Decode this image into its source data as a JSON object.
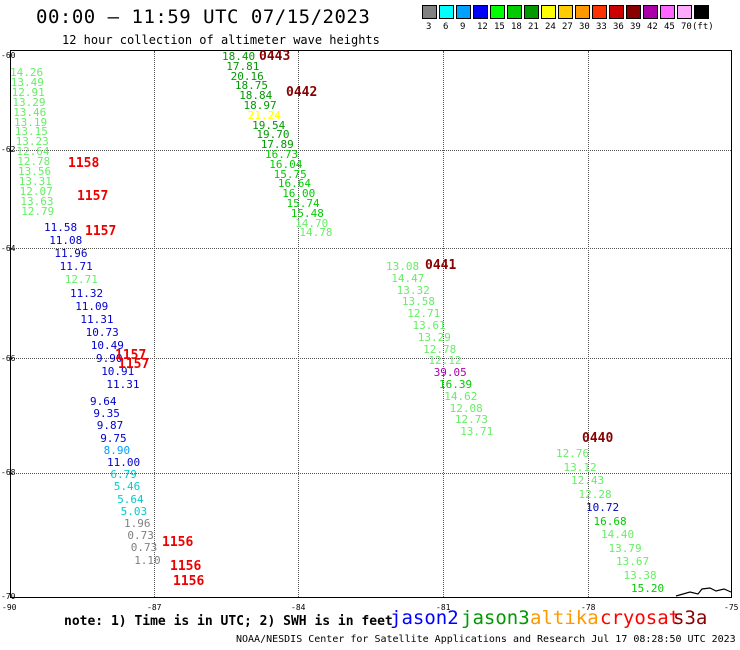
{
  "title": "00:00 – 11:59 UTC 07/15/2023",
  "subtitle": "12 hour collection of altimeter wave heights",
  "scale": {
    "colors": [
      "#808080",
      "#00ffff",
      "#00a0ff",
      "#0000ff",
      "#00ff00",
      "#00cc00",
      "#009900",
      "#ffff00",
      "#ffcc00",
      "#ff9900",
      "#ff3300",
      "#cc0000",
      "#880000",
      "#aa00aa",
      "#ff66ff",
      "#ffaaff",
      "#000000"
    ],
    "labels": [
      "3",
      "6",
      "9",
      "12",
      "15",
      "18",
      "21",
      "24",
      "27",
      "30",
      "33",
      "36",
      "39",
      "42",
      "45",
      "70",
      "(ft)"
    ]
  },
  "axes": {
    "y_labels": [
      "-60",
      "-62",
      "-64",
      "-66",
      "-68",
      "-70"
    ],
    "x_labels": [
      "-90",
      "-87",
      "-84",
      "-81",
      "-78",
      "-75"
    ]
  },
  "tracks": [
    {
      "id": "A",
      "points": [
        {
          "v": "18.40",
          "c": "#009900"
        },
        {
          "v": "17.81",
          "c": "#009900"
        },
        {
          "v": "20.16",
          "c": "#009900"
        },
        {
          "v": "18.75",
          "c": "#009900"
        },
        {
          "v": "18.84",
          "c": "#009900"
        },
        {
          "v": "18.97",
          "c": "#009900"
        },
        {
          "v": "21.24",
          "c": "#ffff00"
        },
        {
          "v": "19.54",
          "c": "#009900"
        },
        {
          "v": "19.70",
          "c": "#009900"
        },
        {
          "v": "17.89",
          "c": "#009900"
        },
        {
          "v": "16.73",
          "c": "#00cc00"
        },
        {
          "v": "16.04",
          "c": "#00cc00"
        },
        {
          "v": "15.75",
          "c": "#00cc00"
        },
        {
          "v": "16.64",
          "c": "#00cc00"
        },
        {
          "v": "16.00",
          "c": "#00cc00"
        },
        {
          "v": "15.74",
          "c": "#00cc00"
        },
        {
          "v": "15.48",
          "c": "#00cc00"
        },
        {
          "v": "14.70",
          "c": "#66ee66"
        },
        {
          "v": "14.78",
          "c": "#66ee66"
        }
      ]
    },
    {
      "id": "B",
      "points": [
        {
          "v": "13.08",
          "c": "#66ee66"
        },
        {
          "v": "14.47",
          "c": "#66ee66"
        },
        {
          "v": "13.32",
          "c": "#66ee66"
        },
        {
          "v": "13.58",
          "c": "#66ee66"
        },
        {
          "v": "12.71",
          "c": "#66ee66"
        },
        {
          "v": "13.61",
          "c": "#66ee66"
        },
        {
          "v": "13.29",
          "c": "#66ee66"
        },
        {
          "v": "12.78",
          "c": "#66ee66"
        },
        {
          "v": "12.12",
          "c": "#66ee66"
        },
        {
          "v": "39.05",
          "c": "#aa00aa"
        },
        {
          "v": "16.39",
          "c": "#00cc00"
        },
        {
          "v": "14.62",
          "c": "#66ee66"
        },
        {
          "v": "12.08",
          "c": "#66ee66"
        },
        {
          "v": "12.73",
          "c": "#66ee66"
        },
        {
          "v": "13.71",
          "c": "#66ee66"
        }
      ]
    },
    {
      "id": "C",
      "points": [
        {
          "v": "12.76",
          "c": "#66ee66"
        },
        {
          "v": "13.12",
          "c": "#66ee66"
        },
        {
          "v": "12.43",
          "c": "#66ee66"
        },
        {
          "v": "12.28",
          "c": "#66ee66"
        },
        {
          "v": "10.72",
          "c": "#0000cc"
        },
        {
          "v": "16.68",
          "c": "#00cc00"
        },
        {
          "v": "14.40",
          "c": "#66ee66"
        },
        {
          "v": "13.79",
          "c": "#66ee66"
        },
        {
          "v": "13.67",
          "c": "#66ee66"
        },
        {
          "v": "13.38",
          "c": "#66ee66"
        },
        {
          "v": "15.20",
          "c": "#00cc00"
        }
      ]
    },
    {
      "id": "D",
      "points": [
        {
          "v": "14.26",
          "c": "#66ee66"
        },
        {
          "v": "13.49",
          "c": "#66ee66"
        },
        {
          "v": "12.91",
          "c": "#66ee66"
        },
        {
          "v": "13.29",
          "c": "#66ee66"
        },
        {
          "v": "13.46",
          "c": "#66ee66"
        },
        {
          "v": "13.19",
          "c": "#66ee66"
        },
        {
          "v": "13.15",
          "c": "#66ee66"
        },
        {
          "v": "13.23",
          "c": "#66ee66"
        },
        {
          "v": "12.64",
          "c": "#66ee66"
        },
        {
          "v": "12.78",
          "c": "#66ee66"
        },
        {
          "v": "13.56",
          "c": "#66ee66"
        },
        {
          "v": "13.31",
          "c": "#66ee66"
        },
        {
          "v": "12.07",
          "c": "#66ee66"
        },
        {
          "v": "13.63",
          "c": "#66ee66"
        },
        {
          "v": "12.79",
          "c": "#66ee66"
        }
      ]
    },
    {
      "id": "E",
      "points": [
        {
          "v": "11.58",
          "c": "#0000cc"
        },
        {
          "v": "11.08",
          "c": "#0000cc"
        },
        {
          "v": "11.96",
          "c": "#0000cc"
        },
        {
          "v": "11.71",
          "c": "#0000cc"
        },
        {
          "v": "12.71",
          "c": "#66ee66"
        },
        {
          "v": "11.32",
          "c": "#0000cc"
        },
        {
          "v": "11.09",
          "c": "#0000cc"
        },
        {
          "v": "11.31",
          "c": "#0000cc"
        },
        {
          "v": "10.73",
          "c": "#0000cc"
        },
        {
          "v": "10.49",
          "c": "#0000cc"
        },
        {
          "v": "9.90",
          "c": "#0000cc"
        },
        {
          "v": "10.91",
          "c": "#0000cc"
        },
        {
          "v": "11.31",
          "c": "#0000cc"
        }
      ]
    },
    {
      "id": "F",
      "points": [
        {
          "v": "9.64",
          "c": "#0000cc"
        },
        {
          "v": "9.35",
          "c": "#0000cc"
        },
        {
          "v": "9.87",
          "c": "#0000cc"
        },
        {
          "v": "9.75",
          "c": "#0000cc"
        },
        {
          "v": "8.90",
          "c": "#00a0ff"
        },
        {
          "v": "11.00",
          "c": "#0000cc"
        },
        {
          "v": "6.79",
          "c": "#00cccc"
        },
        {
          "v": "5.46",
          "c": "#00cccc"
        },
        {
          "v": "5.64",
          "c": "#00cccc"
        },
        {
          "v": "5.03",
          "c": "#00cccc"
        },
        {
          "v": "1.96",
          "c": "#808080"
        },
        {
          "v": "0.73",
          "c": "#808080"
        },
        {
          "v": "0.73",
          "c": "#808080"
        },
        {
          "v": "1.10",
          "c": "#808080"
        }
      ]
    }
  ],
  "times": [
    {
      "t": "0443",
      "c": "#880000"
    },
    {
      "t": "0442",
      "c": "#880000"
    },
    {
      "t": "1158",
      "c": "#ee0000"
    },
    {
      "t": "1157",
      "c": "#ee0000"
    },
    {
      "t": "1157",
      "c": "#ee0000"
    },
    {
      "t": "0441",
      "c": "#880000"
    },
    {
      "t": "1157",
      "c": "#ee0000"
    },
    {
      "t": "1157",
      "c": "#ee0000"
    },
    {
      "t": "0440",
      "c": "#880000"
    },
    {
      "t": "1156",
      "c": "#ee0000"
    },
    {
      "t": "1156",
      "c": "#ee0000"
    },
    {
      "t": "1156",
      "c": "#ee0000"
    }
  ],
  "note": "note: 1) Time is in UTC; 2) SWH is in feet",
  "legend": [
    {
      "name": "jason2",
      "c": "#0000ff"
    },
    {
      "name": "jason3",
      "c": "#009900"
    },
    {
      "name": "altika",
      "c": "#ff9900"
    },
    {
      "name": "cryosat",
      "c": "#ff0000"
    },
    {
      "name": "s3a",
      "c": "#880000"
    }
  ],
  "credit": "NOAA/NESDIS Center for Satellite Applications and Research   Jul 17 08:28:50 UTC 2023"
}
